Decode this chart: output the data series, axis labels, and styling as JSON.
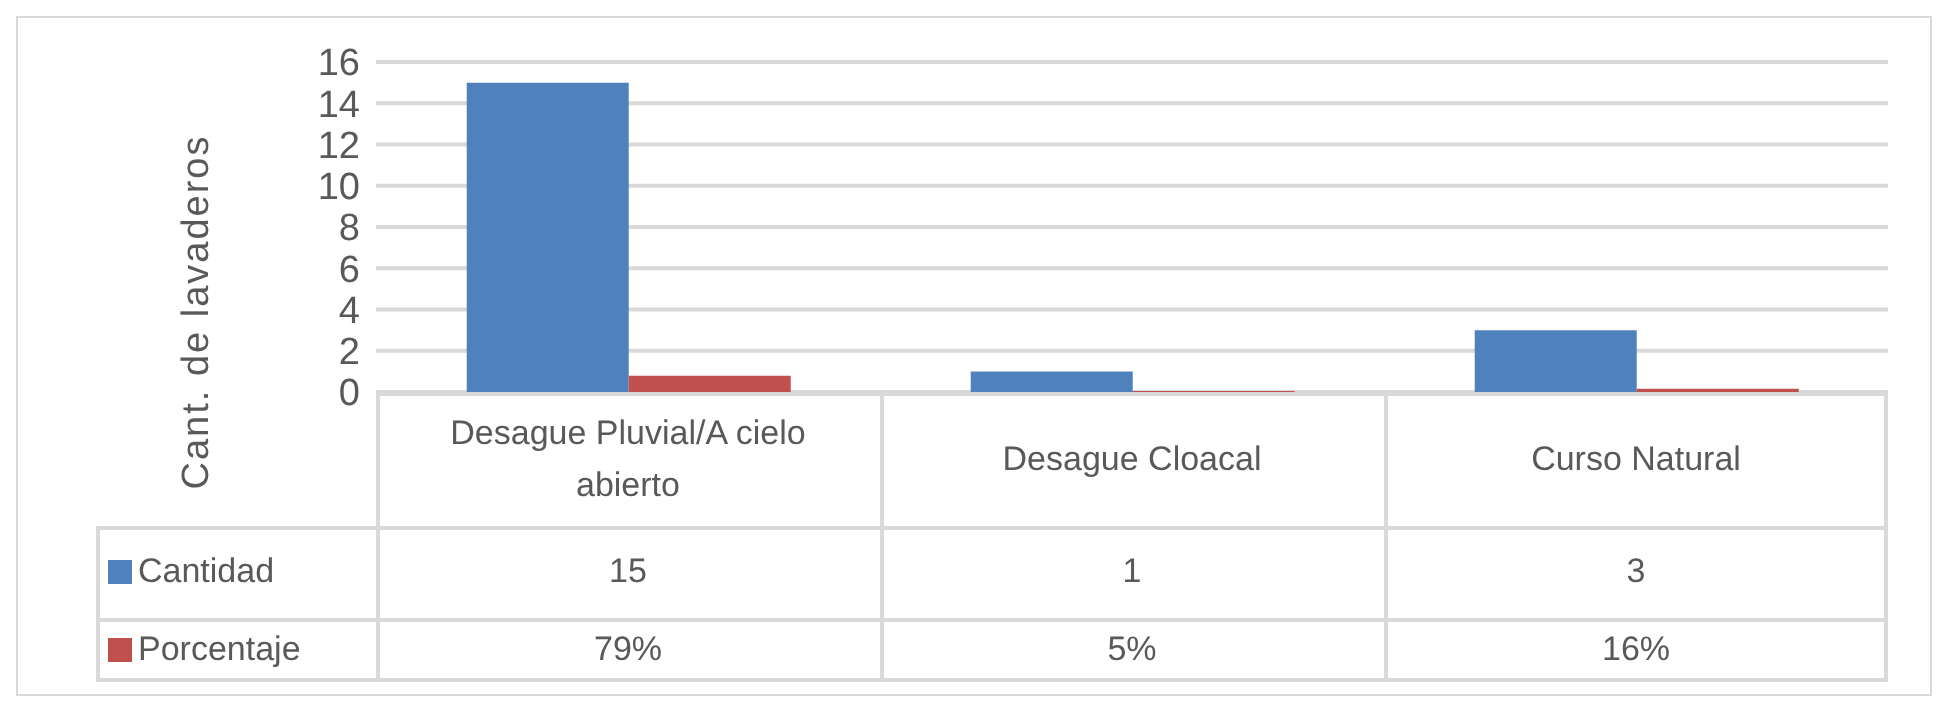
{
  "chart_data": {
    "type": "bar",
    "ylabel": "Cant. de lavaderos",
    "categories": [
      "Desague Pluvial/A cielo abierto",
      "Desague Cloacal",
      "Curso Natural"
    ],
    "series": [
      {
        "name": "Cantidad",
        "color": "#4f81bd",
        "values": [
          15,
          1,
          3
        ],
        "value_labels": [
          "15",
          "1",
          "3"
        ]
      },
      {
        "name": "Porcentaje",
        "color": "#c0504d",
        "values": [
          0.79,
          0.05,
          0.16
        ],
        "value_labels": [
          "79%",
          "5%",
          "16%"
        ]
      }
    ],
    "ylim": [
      0,
      16
    ],
    "yticks": [
      0,
      2,
      4,
      6,
      8,
      10,
      12,
      14,
      16
    ],
    "grid": "y",
    "legend": "bottom"
  }
}
